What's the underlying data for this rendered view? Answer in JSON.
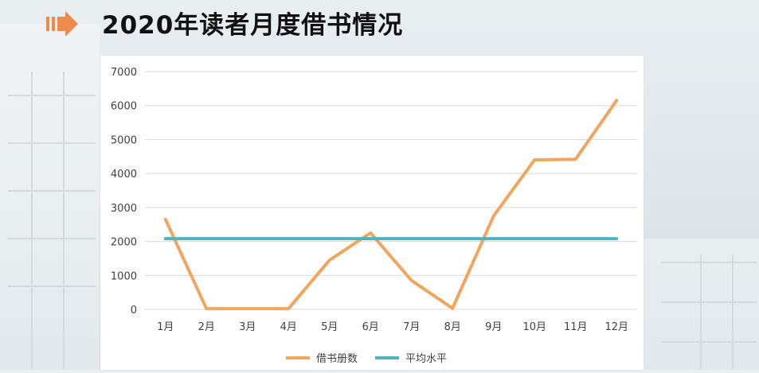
{
  "header": {
    "title": "2020年读者月度借书情况"
  },
  "colors": {
    "accent_arrow": "#f08a4b",
    "series_books": "#f2a55c",
    "series_avg": "#4cb3bf",
    "grid": "#d9d9d9",
    "tick_text": "#404040"
  },
  "chart_data": {
    "type": "line",
    "title": "",
    "xlabel": "",
    "ylabel": "",
    "categories": [
      "1月",
      "2月",
      "3月",
      "4月",
      "5月",
      "6月",
      "7月",
      "8月",
      "9月",
      "10月",
      "11月",
      "12月"
    ],
    "ylim": [
      0,
      7000
    ],
    "yticks": [
      0,
      1000,
      2000,
      3000,
      4000,
      5000,
      6000,
      7000
    ],
    "grid": true,
    "legend": "bottom",
    "series": [
      {
        "name": "借书册数",
        "color": "#f2a55c",
        "values": [
          2650,
          20,
          20,
          20,
          1450,
          2250,
          850,
          30,
          2750,
          4400,
          4420,
          6150
        ]
      },
      {
        "name": "平均水平",
        "color": "#4cb3bf",
        "values": [
          2080,
          2080,
          2080,
          2080,
          2080,
          2080,
          2080,
          2080,
          2080,
          2080,
          2080,
          2080
        ]
      }
    ]
  }
}
